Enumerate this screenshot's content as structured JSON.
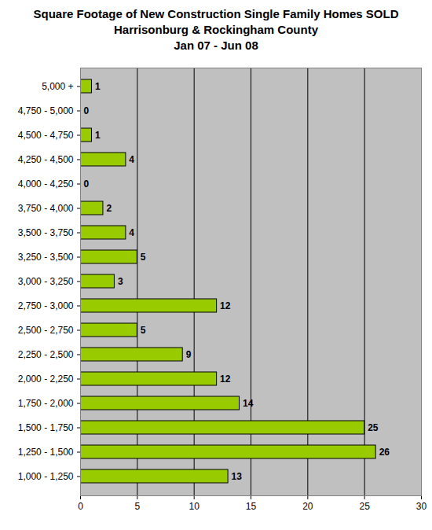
{
  "chart_data": {
    "type": "bar",
    "orientation": "horizontal",
    "title": "Square Footage of New Construction Single Family Homes SOLD\nHarrisonburg & Rockingham County\nJan 07 - Jun 08",
    "categories": [
      "5,000 +",
      "4,750 - 5,000",
      "4,500 - 4,750",
      "4,250 - 4,500",
      "4,000 - 4,250",
      "3,750 - 4,000",
      "3,500 - 3,750",
      "3,250 - 3,500",
      "3,000 - 3,250",
      "2,750 - 3,000",
      "2,500 - 2,750",
      "2,250 - 2,500",
      "2,000 - 2,250",
      "1,750 - 2,000",
      "1,500 - 1,750",
      "1,250 - 1,500",
      "1,000 - 1,250"
    ],
    "values": [
      1,
      0,
      1,
      4,
      0,
      2,
      4,
      5,
      3,
      12,
      5,
      9,
      12,
      14,
      25,
      26,
      13
    ],
    "color": "#99cc00",
    "xlim": [
      0,
      30
    ],
    "xticks": [
      0,
      5,
      10,
      15,
      20,
      25,
      30
    ],
    "grid": true,
    "data_labels": true
  }
}
